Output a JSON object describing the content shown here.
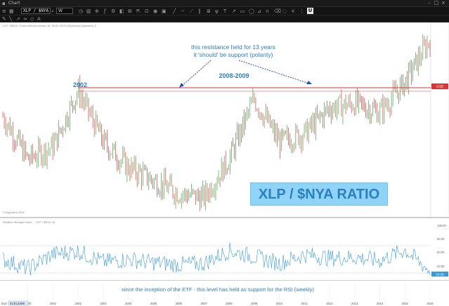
{
  "window": {
    "title": "Chart"
  },
  "toolbar": {
    "symbol": "XLP / $NYA",
    "interval": "W",
    "upload_icon": "U"
  },
  "price_panel": {
    "legend": "XLP / $NYA, Cross-defined spread, W, 35.65 35.65 (Dynamic) (adjusted), 0",
    "watermark": "© Bigcharts 2016",
    "resistance_label": "0.00"
  },
  "rsi_panel": {
    "legend": "Relative Strength Index ... XLP / $NYA, W",
    "last_value_label": "29.26"
  },
  "annotations": {
    "resistance_note_line1": "this resistance held for 13 years",
    "resistance_note_line2": "it 'should' be support (polarity)",
    "label_2002": "2002",
    "label_2008_2009": "2008-2009",
    "ratio_title": "XLP / $NYA RATIO",
    "rsi_note": "since the inception of the ETF - this level has held as support for the RSI (weekly)"
  },
  "colors": {
    "candle_up": "#2a8f2a",
    "candle_down": "#c02020",
    "resistance_line": "#e03030",
    "rsi_line": "#3a9ad9",
    "annotation_text": "#2a7fc0",
    "arrow": "#2050c0"
  },
  "price_scale": [
    "0.00"
  ],
  "rsi_scale": [
    "100.00",
    "80.00",
    "60.00",
    "40.00",
    "29.26"
  ],
  "time_axis": {
    "scope_label": "Dyn",
    "start_date": "01/01/1999",
    "years": [
      "1999",
      "2000",
      "2001",
      "2002",
      "2003",
      "2004",
      "2005",
      "2006",
      "2007",
      "2008",
      "2009",
      "2010",
      "2011",
      "2012",
      "2013",
      "2014",
      "2015",
      "2016"
    ]
  },
  "chart_data": {
    "type": "line",
    "title": "XLP / $NYA RATIO",
    "series": [
      {
        "name": "XLP / $NYA",
        "x": [
          "1999",
          "2000",
          "2001",
          "2002",
          "2003",
          "2004",
          "2005",
          "2006",
          "2007",
          "2008",
          "2009",
          "2010",
          "2011",
          "2012",
          "2013",
          "2014",
          "2015",
          "2016"
        ],
        "values": [
          0.62,
          0.52,
          0.55,
          0.68,
          0.56,
          0.5,
          0.47,
          0.44,
          0.43,
          0.52,
          0.66,
          0.56,
          0.58,
          0.64,
          0.65,
          0.63,
          0.7,
          0.8
        ]
      },
      {
        "name": "RSI (weekly)",
        "x": [
          "1999",
          "2000",
          "2001",
          "2002",
          "2003",
          "2004",
          "2005",
          "2006",
          "2007",
          "2008",
          "2009",
          "2010",
          "2011",
          "2012",
          "2013",
          "2014",
          "2015",
          "2016"
        ],
        "values": [
          50,
          36,
          58,
          62,
          46,
          50,
          45,
          42,
          44,
          63,
          54,
          44,
          57,
          52,
          53,
          48,
          64,
          32
        ]
      }
    ],
    "resistance_level": 0.68,
    "rsi_support_level": 31,
    "ylabel": "",
    "grid": false
  }
}
